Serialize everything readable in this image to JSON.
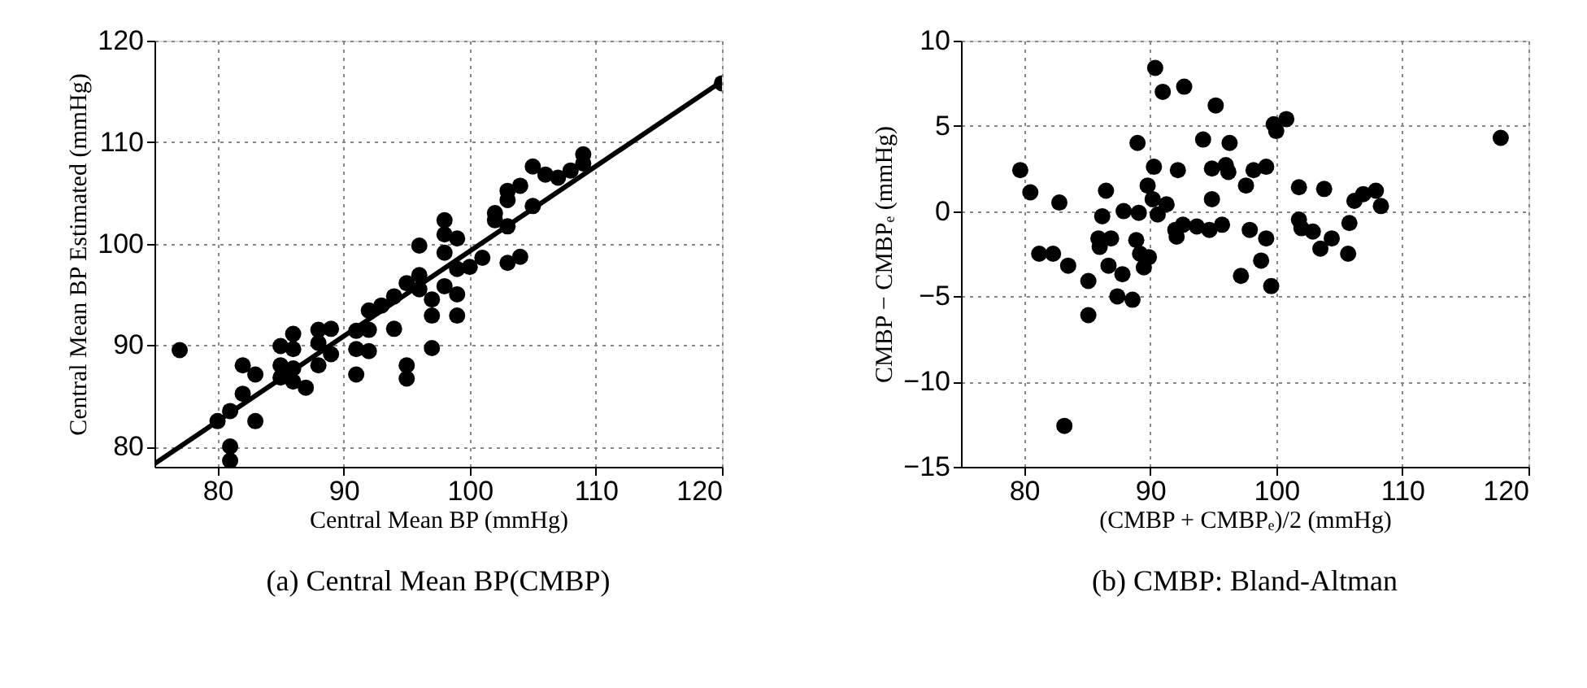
{
  "chart_data": [
    {
      "type": "scatter",
      "title": "(a) Central Mean BP(CMBP)",
      "xlabel": "Central Mean BP (mmHg)",
      "ylabel": "Central Mean BP Estimated (mmHg)",
      "xlim": [
        75,
        120
      ],
      "ylim": [
        78,
        120
      ],
      "xticks": [
        80,
        90,
        100,
        110,
        120
      ],
      "yticks": [
        80,
        90,
        100,
        110,
        120
      ],
      "grid": true,
      "marker": "circle",
      "series": [
        {
          "color": "#000000",
          "x": [
            77.0,
            80.0,
            81.0,
            81.0,
            81.0,
            82.0,
            82.0,
            83.0,
            83.0,
            85.0,
            85.0,
            85.0,
            86.0,
            86.0,
            86.0,
            86.0,
            87.0,
            88.0,
            88.0,
            88.0,
            89.0,
            89.0,
            91.0,
            91.0,
            91.0,
            92.0,
            92.0,
            92.0,
            93.0,
            94.0,
            94.0,
            95.0,
            95.0,
            95.0,
            96.0,
            96.0,
            96.0,
            97.0,
            97.0,
            97.0,
            98.0,
            98.0,
            98.0,
            98.0,
            99.0,
            99.0,
            99.0,
            99.0,
            100.0,
            101.0,
            102.0,
            102.0,
            103.0,
            103.0,
            103.0,
            103.0,
            104.0,
            104.0,
            105.0,
            105.0,
            106.0,
            107.0,
            108.0,
            109.0,
            109.0,
            120.0
          ],
          "values": [
            89.5,
            82.5,
            83.5,
            80.0,
            78.6,
            88.0,
            85.2,
            87.1,
            82.5,
            89.9,
            88.0,
            86.8,
            91.1,
            89.6,
            87.7,
            86.4,
            85.8,
            91.5,
            90.2,
            88.0,
            91.6,
            89.1,
            91.4,
            89.6,
            87.1,
            93.4,
            91.5,
            89.4,
            93.9,
            94.8,
            91.6,
            96.1,
            88.0,
            86.7,
            99.8,
            96.9,
            95.5,
            94.5,
            92.9,
            89.7,
            102.3,
            100.9,
            99.1,
            95.8,
            100.5,
            97.5,
            95.0,
            92.9,
            97.7,
            98.6,
            103.0,
            102.3,
            105.2,
            104.3,
            101.7,
            98.1,
            105.7,
            98.7,
            107.6,
            103.7,
            106.8,
            106.5,
            107.2,
            108.8,
            107.9,
            115.8
          ]
        },
        {
          "type": "line",
          "marker": "none",
          "color": "#000000",
          "x": [
            75,
            120
          ],
          "values": [
            78.3,
            116.0
          ]
        }
      ]
    },
    {
      "type": "scatter",
      "title": "(b) CMBP: Bland-Altman",
      "xlabel": "(CMBP + CMBPₑ)/2 (mmHg)",
      "ylabel": "CMBP − CMBPₑ (mmHg)",
      "xlim": [
        75,
        120
      ],
      "ylim": [
        -15,
        10
      ],
      "xticks": [
        80,
        90,
        100,
        110,
        120
      ],
      "yticks": [
        {
          "value": -15,
          "label": "−15"
        },
        {
          "value": -10,
          "label": "−10"
        },
        {
          "value": -5,
          "label": "−5"
        },
        0,
        5,
        10
      ],
      "grid": true,
      "marker": "circle",
      "series": [
        {
          "color": "#000000",
          "x": [
            79.7,
            80.5,
            81.2,
            82.3,
            82.8,
            83.5,
            83.2,
            85.1,
            85.1,
            85.9,
            86.0,
            86.2,
            86.5,
            86.7,
            86.9,
            87.4,
            87.8,
            87.9,
            88.6,
            88.9,
            89.0,
            89.1,
            89.2,
            89.5,
            89.9,
            89.8,
            90.2,
            90.3,
            90.4,
            90.6,
            91.0,
            91.3,
            92.0,
            92.1,
            92.2,
            92.6,
            92.7,
            93.7,
            94.2,
            94.7,
            94.9,
            94.9,
            95.2,
            95.7,
            96.0,
            96.2,
            96.3,
            97.2,
            97.6,
            97.9,
            98.2,
            98.8,
            99.2,
            99.2,
            99.6,
            99.8,
            100.0,
            100.8,
            101.8,
            101.8,
            102.0,
            102.9,
            103.5,
            103.8,
            104.4,
            105.7,
            105.8,
            106.2,
            106.9,
            107.9,
            108.3,
            117.8
          ],
          "values": [
            2.4,
            1.1,
            -2.5,
            -2.5,
            0.5,
            -3.2,
            -12.6,
            -4.1,
            -6.1,
            -1.6,
            -2.1,
            -0.3,
            1.2,
            -3.2,
            -1.6,
            -5.0,
            -3.7,
            0.0,
            -5.2,
            -1.7,
            4.0,
            -0.1,
            -2.5,
            -3.3,
            -2.7,
            1.5,
            0.7,
            2.6,
            8.4,
            -0.2,
            7.0,
            0.4,
            -1.1,
            -1.5,
            2.4,
            -0.8,
            7.3,
            -0.9,
            4.2,
            -1.1,
            0.7,
            2.5,
            6.2,
            -0.8,
            2.7,
            2.3,
            4.0,
            -3.8,
            1.5,
            -1.1,
            2.4,
            -2.9,
            2.6,
            -1.6,
            -4.4,
            5.1,
            4.7,
            5.4,
            1.4,
            -0.5,
            -1.0,
            -1.2,
            -2.2,
            1.3,
            -1.6,
            -2.5,
            -0.7,
            0.6,
            1.0,
            1.2,
            0.3,
            4.3
          ]
        }
      ]
    }
  ]
}
